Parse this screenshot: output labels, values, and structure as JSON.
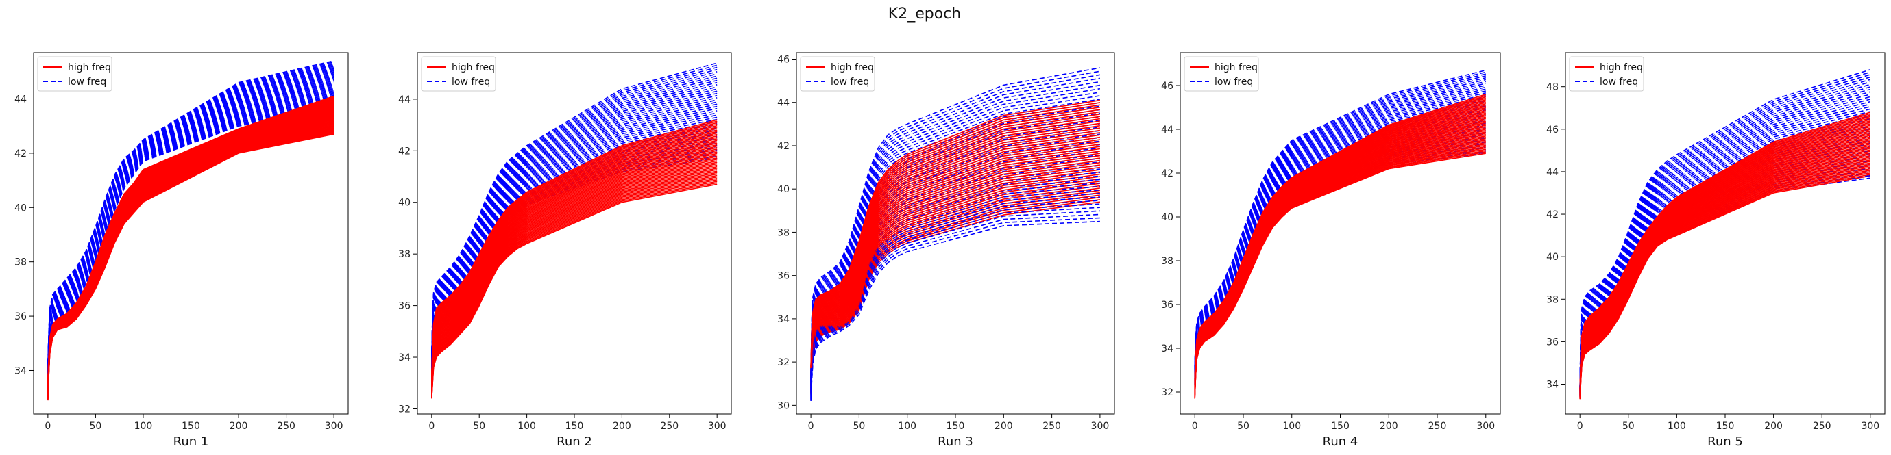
{
  "figure_title": "K2_epoch",
  "chart_data": [
    {
      "type": "line",
      "xlabel": "Run 1",
      "x": [
        0,
        1,
        2,
        5,
        10,
        20,
        30,
        40,
        50,
        60,
        70,
        80,
        90,
        100,
        200,
        300
      ],
      "xticks": [
        0,
        50,
        100,
        150,
        200,
        250,
        300
      ],
      "xlim": [
        -15,
        315
      ],
      "yticks": [
        34,
        36,
        38,
        40,
        42,
        44
      ],
      "ylim": [
        32.4,
        45.7
      ],
      "legend": {
        "location": "upper-left",
        "entries": [
          {
            "label": "high freq",
            "series": "high"
          },
          {
            "label": "low freq",
            "series": "low"
          }
        ]
      },
      "series": [
        {
          "group": "high",
          "color": "#ff0000",
          "style": "solid",
          "count": 45,
          "bottom": [
            32.9,
            33.9,
            34.6,
            35.2,
            35.5,
            35.6,
            35.9,
            36.4,
            37.0,
            37.8,
            38.7,
            39.4,
            39.8,
            40.2,
            42.0,
            42.7
          ],
          "top": [
            33.7,
            34.6,
            35.2,
            35.7,
            35.9,
            36.1,
            36.5,
            37.1,
            38.0,
            39.0,
            39.8,
            40.5,
            40.9,
            41.4,
            42.9,
            44.1
          ]
        },
        {
          "group": "low",
          "color": "#0000ff",
          "style": "dashed",
          "count": 45,
          "bottom": [
            33.6,
            34.5,
            35.2,
            35.6,
            35.9,
            36.1,
            36.5,
            37.2,
            38.0,
            39.0,
            39.9,
            40.7,
            41.2,
            41.7,
            43.0,
            43.6
          ],
          "top": [
            34.3,
            35.5,
            36.3,
            36.8,
            37.0,
            37.4,
            37.8,
            38.4,
            39.3,
            40.3,
            41.2,
            41.8,
            42.1,
            42.5,
            44.6,
            45.4
          ]
        }
      ]
    },
    {
      "type": "line",
      "xlabel": "Run 2",
      "x": [
        0,
        1,
        2,
        5,
        10,
        20,
        30,
        40,
        50,
        60,
        70,
        80,
        90,
        100,
        200,
        300
      ],
      "xticks": [
        0,
        50,
        100,
        150,
        200,
        250,
        300
      ],
      "xlim": [
        -15,
        315
      ],
      "yticks": [
        32,
        34,
        36,
        38,
        40,
        42,
        44
      ],
      "ylim": [
        31.8,
        45.8
      ],
      "legend": {
        "location": "upper-left",
        "entries": [
          {
            "label": "high freq",
            "series": "high"
          },
          {
            "label": "low freq",
            "series": "low"
          }
        ]
      },
      "series": [
        {
          "group": "high",
          "color": "#ff0000",
          "style": "solid",
          "count": 45,
          "bottom": [
            32.4,
            33.0,
            33.6,
            34.0,
            34.2,
            34.5,
            34.9,
            35.3,
            36.0,
            36.8,
            37.5,
            37.9,
            38.2,
            38.4,
            40.0,
            40.7
          ],
          "top": [
            33.2,
            34.5,
            35.3,
            35.9,
            36.1,
            36.4,
            36.8,
            37.3,
            38.0,
            38.7,
            39.3,
            39.8,
            40.1,
            40.4,
            42.2,
            43.2
          ]
        },
        {
          "group": "low",
          "color": "#0000ff",
          "style": "dashed",
          "count": 45,
          "bottom": [
            33.4,
            34.1,
            34.6,
            35.0,
            35.2,
            35.5,
            36.0,
            36.6,
            37.4,
            38.2,
            38.9,
            39.3,
            39.6,
            39.9,
            41.2,
            41.7
          ],
          "top": [
            34.0,
            35.8,
            36.5,
            36.9,
            37.1,
            37.5,
            38.0,
            38.7,
            39.5,
            40.4,
            41.1,
            41.6,
            41.9,
            42.2,
            44.4,
            45.4
          ]
        }
      ]
    },
    {
      "type": "line",
      "xlabel": "Run 3",
      "x": [
        0,
        1,
        2,
        5,
        10,
        20,
        30,
        40,
        50,
        60,
        70,
        80,
        90,
        100,
        200,
        300
      ],
      "xticks": [
        0,
        50,
        100,
        150,
        200,
        250,
        300
      ],
      "xlim": [
        -15,
        315
      ],
      "yticks": [
        30,
        32,
        34,
        36,
        38,
        40,
        42,
        44,
        46
      ],
      "ylim": [
        29.6,
        46.3
      ],
      "legend": {
        "location": "upper-left",
        "entries": [
          {
            "label": "high freq",
            "series": "high"
          },
          {
            "label": "low freq",
            "series": "low"
          }
        ]
      },
      "series": [
        {
          "group": "high",
          "color": "#ff0000",
          "style": "solid",
          "count": 45,
          "bottom": [
            30.5,
            31.6,
            32.3,
            32.9,
            33.2,
            33.4,
            33.5,
            33.8,
            34.4,
            35.8,
            36.6,
            37.0,
            37.3,
            37.5,
            38.8,
            39.4
          ],
          "top": [
            31.8,
            33.5,
            34.3,
            34.9,
            35.1,
            35.3,
            35.6,
            36.3,
            37.6,
            39.2,
            40.3,
            40.9,
            41.3,
            41.6,
            43.4,
            44.1
          ]
        },
        {
          "group": "low",
          "color": "#0000ff",
          "style": "dashed",
          "count": 45,
          "bottom": [
            30.2,
            31.2,
            31.9,
            32.6,
            32.9,
            33.2,
            33.4,
            33.7,
            34.2,
            35.3,
            36.1,
            36.6,
            36.9,
            37.1,
            38.3,
            38.5
          ],
          "top": [
            31.5,
            34.0,
            35.0,
            35.6,
            35.9,
            36.2,
            36.6,
            37.6,
            39.2,
            40.8,
            41.9,
            42.5,
            42.8,
            43.0,
            44.8,
            45.6
          ]
        }
      ]
    },
    {
      "type": "line",
      "xlabel": "Run 4",
      "x": [
        0,
        1,
        2,
        5,
        10,
        20,
        30,
        40,
        50,
        60,
        70,
        80,
        90,
        100,
        200,
        300
      ],
      "xticks": [
        0,
        50,
        100,
        150,
        200,
        250,
        300
      ],
      "xlim": [
        -15,
        315
      ],
      "yticks": [
        32,
        34,
        36,
        38,
        40,
        42,
        44,
        46
      ],
      "ylim": [
        31.0,
        47.5
      ],
      "legend": {
        "location": "upper-left",
        "entries": [
          {
            "label": "high freq",
            "series": "high"
          },
          {
            "label": "low freq",
            "series": "low"
          }
        ]
      },
      "series": [
        {
          "group": "high",
          "color": "#ff0000",
          "style": "solid",
          "count": 45,
          "bottom": [
            31.7,
            32.8,
            33.5,
            34.0,
            34.3,
            34.6,
            35.1,
            35.8,
            36.7,
            37.7,
            38.7,
            39.5,
            40.0,
            40.4,
            42.2,
            42.9
          ],
          "top": [
            32.6,
            33.7,
            34.4,
            34.9,
            35.2,
            35.6,
            36.2,
            37.0,
            38.1,
            39.2,
            40.2,
            40.9,
            41.4,
            41.8,
            44.2,
            45.6
          ]
        },
        {
          "group": "low",
          "color": "#0000ff",
          "style": "dashed",
          "count": 45,
          "bottom": [
            32.3,
            33.3,
            34.0,
            34.5,
            34.8,
            35.1,
            35.6,
            36.3,
            37.3,
            38.4,
            39.4,
            40.2,
            40.7,
            41.1,
            42.4,
            42.9
          ],
          "top": [
            33.2,
            34.5,
            35.2,
            35.6,
            35.9,
            36.4,
            37.1,
            38.1,
            39.4,
            40.6,
            41.7,
            42.5,
            43.0,
            43.5,
            45.6,
            46.7
          ]
        }
      ]
    },
    {
      "type": "line",
      "xlabel": "Run 5",
      "x": [
        0,
        1,
        2,
        5,
        10,
        20,
        30,
        40,
        50,
        60,
        70,
        80,
        90,
        100,
        200,
        300
      ],
      "xticks": [
        0,
        50,
        100,
        150,
        200,
        250,
        300
      ],
      "xlim": [
        -15,
        315
      ],
      "yticks": [
        34,
        36,
        38,
        40,
        42,
        44,
        46,
        48
      ],
      "ylim": [
        32.6,
        49.6
      ],
      "legend": {
        "location": "upper-left",
        "entries": [
          {
            "label": "high freq",
            "series": "high"
          },
          {
            "label": "low freq",
            "series": "low"
          }
        ]
      },
      "series": [
        {
          "group": "high",
          "color": "#ff0000",
          "style": "solid",
          "count": 45,
          "bottom": [
            33.3,
            34.2,
            34.9,
            35.4,
            35.6,
            35.9,
            36.4,
            37.1,
            38.0,
            39.0,
            39.9,
            40.5,
            40.8,
            41.0,
            43.0,
            43.8
          ],
          "top": [
            33.8,
            35.5,
            36.3,
            36.9,
            37.2,
            37.6,
            38.1,
            38.8,
            39.7,
            40.6,
            41.3,
            41.9,
            42.4,
            42.8,
            45.4,
            46.8
          ]
        },
        {
          "group": "low",
          "color": "#0000ff",
          "style": "dashed",
          "count": 45,
          "bottom": [
            33.4,
            34.3,
            35.0,
            35.5,
            35.7,
            36.0,
            36.5,
            37.2,
            38.1,
            39.1,
            40.0,
            40.6,
            40.9,
            41.1,
            43.1,
            43.7
          ],
          "top": [
            33.9,
            36.8,
            37.6,
            38.1,
            38.4,
            38.7,
            39.2,
            40.0,
            41.2,
            42.5,
            43.5,
            44.1,
            44.5,
            44.8,
            47.4,
            48.8
          ]
        }
      ]
    }
  ]
}
